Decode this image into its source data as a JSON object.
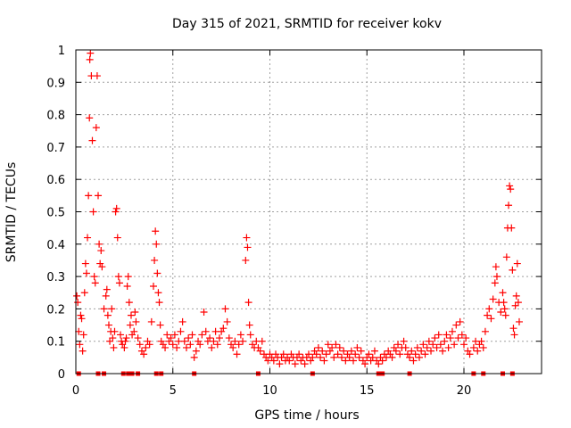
{
  "chart_data": {
    "type": "scatter",
    "title": "Day 315 of 2021, SRMTID for receiver kokv",
    "xlabel": "GPS time / hours",
    "ylabel": "SRMTID / TECUs",
    "xlim": [
      0,
      24
    ],
    "ylim": [
      0,
      1
    ],
    "x_ticks": [
      0,
      5,
      10,
      15,
      20
    ],
    "x_tick_labels": [
      "0",
      "5",
      "10",
      "15",
      "20"
    ],
    "y_ticks": [
      0,
      0.1,
      0.2,
      0.3,
      0.4,
      0.5,
      0.6,
      0.7,
      0.8,
      0.9,
      1
    ],
    "y_tick_labels": [
      "0",
      "0.1",
      "0.2",
      "0.3",
      "0.4",
      "0.5",
      "0.6",
      "0.7",
      "0.8",
      "0.9",
      "1"
    ],
    "grid": true,
    "marker": "+",
    "color": "#ff0000",
    "zero_markers": {
      "marker": "square",
      "y": 0,
      "x": [
        0.15,
        1.15,
        1.45,
        2.45,
        2.7,
        2.9,
        3.2,
        4.15,
        4.4,
        6.1,
        9.4,
        12.2,
        15.6,
        15.8,
        17.2,
        20.5,
        21.0,
        22.0,
        22.5
      ]
    },
    "series": [
      {
        "name": "SRMTID",
        "points": [
          [
            0.05,
            0.24
          ],
          [
            0.1,
            0.22
          ],
          [
            0.15,
            0.13
          ],
          [
            0.2,
            0.09
          ],
          [
            0.25,
            0.18
          ],
          [
            0.3,
            0.17
          ],
          [
            0.35,
            0.07
          ],
          [
            0.4,
            0.12
          ],
          [
            0.45,
            0.25
          ],
          [
            0.5,
            0.34
          ],
          [
            0.55,
            0.31
          ],
          [
            0.6,
            0.42
          ],
          [
            0.65,
            0.55
          ],
          [
            0.7,
            0.79
          ],
          [
            0.72,
            0.97
          ],
          [
            0.75,
            0.99
          ],
          [
            0.8,
            0.92
          ],
          [
            0.85,
            0.72
          ],
          [
            0.9,
            0.5
          ],
          [
            0.95,
            0.3
          ],
          [
            1.0,
            0.28
          ],
          [
            1.05,
            0.76
          ],
          [
            1.1,
            0.92
          ],
          [
            1.15,
            0.55
          ],
          [
            1.2,
            0.4
          ],
          [
            1.25,
            0.34
          ],
          [
            1.3,
            0.38
          ],
          [
            1.35,
            0.33
          ],
          [
            1.45,
            0.2
          ],
          [
            1.55,
            0.24
          ],
          [
            1.6,
            0.26
          ],
          [
            1.65,
            0.18
          ],
          [
            1.7,
            0.15
          ],
          [
            1.75,
            0.1
          ],
          [
            1.8,
            0.13
          ],
          [
            1.85,
            0.2
          ],
          [
            1.9,
            0.11
          ],
          [
            1.95,
            0.08
          ],
          [
            2.0,
            0.13
          ],
          [
            2.05,
            0.5
          ],
          [
            2.1,
            0.51
          ],
          [
            2.15,
            0.42
          ],
          [
            2.2,
            0.3
          ],
          [
            2.25,
            0.28
          ],
          [
            2.3,
            0.12
          ],
          [
            2.35,
            0.1
          ],
          [
            2.4,
            0.09
          ],
          [
            2.5,
            0.08
          ],
          [
            2.55,
            0.1
          ],
          [
            2.6,
            0.11
          ],
          [
            2.65,
            0.27
          ],
          [
            2.7,
            0.3
          ],
          [
            2.75,
            0.22
          ],
          [
            2.8,
            0.15
          ],
          [
            2.85,
            0.18
          ],
          [
            2.9,
            0.12
          ],
          [
            3.0,
            0.13
          ],
          [
            3.05,
            0.19
          ],
          [
            3.1,
            0.16
          ],
          [
            3.2,
            0.11
          ],
          [
            3.3,
            0.09
          ],
          [
            3.4,
            0.07
          ],
          [
            3.5,
            0.06
          ],
          [
            3.6,
            0.08
          ],
          [
            3.7,
            0.1
          ],
          [
            3.8,
            0.09
          ],
          [
            3.9,
            0.16
          ],
          [
            4.0,
            0.27
          ],
          [
            4.05,
            0.35
          ],
          [
            4.1,
            0.44
          ],
          [
            4.15,
            0.4
          ],
          [
            4.2,
            0.31
          ],
          [
            4.25,
            0.25
          ],
          [
            4.3,
            0.22
          ],
          [
            4.35,
            0.15
          ],
          [
            4.4,
            0.1
          ],
          [
            4.5,
            0.09
          ],
          [
            4.6,
            0.08
          ],
          [
            4.7,
            0.12
          ],
          [
            4.8,
            0.1
          ],
          [
            4.9,
            0.11
          ],
          [
            5.0,
            0.09
          ],
          [
            5.1,
            0.12
          ],
          [
            5.2,
            0.08
          ],
          [
            5.3,
            0.1
          ],
          [
            5.4,
            0.13
          ],
          [
            5.5,
            0.16
          ],
          [
            5.6,
            0.1
          ],
          [
            5.7,
            0.08
          ],
          [
            5.8,
            0.11
          ],
          [
            5.9,
            0.09
          ],
          [
            6.0,
            0.12
          ],
          [
            6.1,
            0.05
          ],
          [
            6.2,
            0.07
          ],
          [
            6.3,
            0.1
          ],
          [
            6.4,
            0.09
          ],
          [
            6.5,
            0.12
          ],
          [
            6.6,
            0.19
          ],
          [
            6.7,
            0.13
          ],
          [
            6.8,
            0.1
          ],
          [
            6.9,
            0.11
          ],
          [
            7.0,
            0.08
          ],
          [
            7.1,
            0.1
          ],
          [
            7.2,
            0.13
          ],
          [
            7.3,
            0.09
          ],
          [
            7.4,
            0.11
          ],
          [
            7.5,
            0.13
          ],
          [
            7.6,
            0.14
          ],
          [
            7.7,
            0.2
          ],
          [
            7.8,
            0.16
          ],
          [
            7.9,
            0.11
          ],
          [
            8.0,
            0.09
          ],
          [
            8.1,
            0.08
          ],
          [
            8.2,
            0.1
          ],
          [
            8.3,
            0.06
          ],
          [
            8.4,
            0.09
          ],
          [
            8.5,
            0.12
          ],
          [
            8.6,
            0.1
          ],
          [
            8.75,
            0.35
          ],
          [
            8.8,
            0.42
          ],
          [
            8.85,
            0.39
          ],
          [
            8.9,
            0.22
          ],
          [
            8.95,
            0.15
          ],
          [
            9.0,
            0.12
          ],
          [
            9.1,
            0.09
          ],
          [
            9.2,
            0.08
          ],
          [
            9.3,
            0.1
          ],
          [
            9.4,
            0.08
          ],
          [
            9.5,
            0.07
          ],
          [
            9.6,
            0.1
          ],
          [
            9.7,
            0.06
          ],
          [
            9.8,
            0.05
          ],
          [
            9.9,
            0.04
          ],
          [
            10.0,
            0.06
          ],
          [
            10.1,
            0.05
          ],
          [
            10.2,
            0.04
          ],
          [
            10.3,
            0.06
          ],
          [
            10.4,
            0.05
          ],
          [
            10.5,
            0.03
          ],
          [
            10.6,
            0.05
          ],
          [
            10.7,
            0.06
          ],
          [
            10.8,
            0.04
          ],
          [
            10.9,
            0.05
          ],
          [
            11.0,
            0.04
          ],
          [
            11.1,
            0.06
          ],
          [
            11.2,
            0.05
          ],
          [
            11.3,
            0.03
          ],
          [
            11.4,
            0.05
          ],
          [
            11.5,
            0.06
          ],
          [
            11.6,
            0.04
          ],
          [
            11.7,
            0.05
          ],
          [
            11.8,
            0.03
          ],
          [
            11.9,
            0.05
          ],
          [
            12.0,
            0.06
          ],
          [
            12.1,
            0.04
          ],
          [
            12.2,
            0.05
          ],
          [
            12.3,
            0.07
          ],
          [
            12.4,
            0.06
          ],
          [
            12.5,
            0.08
          ],
          [
            12.6,
            0.05
          ],
          [
            12.7,
            0.07
          ],
          [
            12.8,
            0.04
          ],
          [
            12.9,
            0.06
          ],
          [
            13.0,
            0.09
          ],
          [
            13.1,
            0.07
          ],
          [
            13.2,
            0.08
          ],
          [
            13.3,
            0.05
          ],
          [
            13.4,
            0.09
          ],
          [
            13.5,
            0.06
          ],
          [
            13.6,
            0.08
          ],
          [
            13.7,
            0.05
          ],
          [
            13.8,
            0.07
          ],
          [
            13.9,
            0.04
          ],
          [
            14.0,
            0.06
          ],
          [
            14.1,
            0.05
          ],
          [
            14.2,
            0.07
          ],
          [
            14.3,
            0.04
          ],
          [
            14.4,
            0.06
          ],
          [
            14.5,
            0.08
          ],
          [
            14.6,
            0.05
          ],
          [
            14.7,
            0.07
          ],
          [
            14.8,
            0.04
          ],
          [
            14.9,
            0.03
          ],
          [
            15.0,
            0.05
          ],
          [
            15.1,
            0.06
          ],
          [
            15.2,
            0.04
          ],
          [
            15.3,
            0.05
          ],
          [
            15.4,
            0.07
          ],
          [
            15.5,
            0.04
          ],
          [
            15.6,
            0.03
          ],
          [
            15.7,
            0.05
          ],
          [
            15.8,
            0.04
          ],
          [
            15.9,
            0.06
          ],
          [
            16.0,
            0.05
          ],
          [
            16.1,
            0.07
          ],
          [
            16.2,
            0.06
          ],
          [
            16.3,
            0.05
          ],
          [
            16.4,
            0.08
          ],
          [
            16.5,
            0.07
          ],
          [
            16.6,
            0.09
          ],
          [
            16.7,
            0.06
          ],
          [
            16.8,
            0.08
          ],
          [
            16.9,
            0.1
          ],
          [
            17.0,
            0.08
          ],
          [
            17.1,
            0.06
          ],
          [
            17.2,
            0.05
          ],
          [
            17.3,
            0.07
          ],
          [
            17.4,
            0.04
          ],
          [
            17.5,
            0.06
          ],
          [
            17.6,
            0.08
          ],
          [
            17.7,
            0.05
          ],
          [
            17.8,
            0.07
          ],
          [
            17.9,
            0.09
          ],
          [
            18.0,
            0.06
          ],
          [
            18.1,
            0.08
          ],
          [
            18.2,
            0.1
          ],
          [
            18.3,
            0.07
          ],
          [
            18.4,
            0.09
          ],
          [
            18.5,
            0.11
          ],
          [
            18.6,
            0.08
          ],
          [
            18.7,
            0.12
          ],
          [
            18.8,
            0.09
          ],
          [
            18.9,
            0.07
          ],
          [
            19.0,
            0.1
          ],
          [
            19.1,
            0.12
          ],
          [
            19.2,
            0.08
          ],
          [
            19.3,
            0.11
          ],
          [
            19.4,
            0.13
          ],
          [
            19.5,
            0.09
          ],
          [
            19.6,
            0.15
          ],
          [
            19.7,
            0.11
          ],
          [
            19.8,
            0.16
          ],
          [
            19.9,
            0.12
          ],
          [
            20.0,
            0.09
          ],
          [
            20.1,
            0.11
          ],
          [
            20.2,
            0.07
          ],
          [
            20.3,
            0.06
          ],
          [
            20.5,
            0.08
          ],
          [
            20.6,
            0.1
          ],
          [
            20.7,
            0.07
          ],
          [
            20.8,
            0.09
          ],
          [
            20.9,
            0.1
          ],
          [
            21.0,
            0.08
          ],
          [
            21.1,
            0.13
          ],
          [
            21.2,
            0.18
          ],
          [
            21.3,
            0.2
          ],
          [
            21.4,
            0.17
          ],
          [
            21.5,
            0.23
          ],
          [
            21.6,
            0.28
          ],
          [
            21.65,
            0.33
          ],
          [
            21.7,
            0.3
          ],
          [
            21.8,
            0.22
          ],
          [
            21.9,
            0.19
          ],
          [
            22.0,
            0.25
          ],
          [
            22.05,
            0.22
          ],
          [
            22.1,
            0.2
          ],
          [
            22.15,
            0.18
          ],
          [
            22.2,
            0.36
          ],
          [
            22.25,
            0.45
          ],
          [
            22.3,
            0.52
          ],
          [
            22.35,
            0.58
          ],
          [
            22.4,
            0.57
          ],
          [
            22.45,
            0.45
          ],
          [
            22.5,
            0.32
          ],
          [
            22.55,
            0.14
          ],
          [
            22.6,
            0.12
          ],
          [
            22.65,
            0.21
          ],
          [
            22.7,
            0.24
          ],
          [
            22.75,
            0.34
          ],
          [
            22.8,
            0.22
          ],
          [
            22.85,
            0.16
          ]
        ]
      }
    ]
  }
}
